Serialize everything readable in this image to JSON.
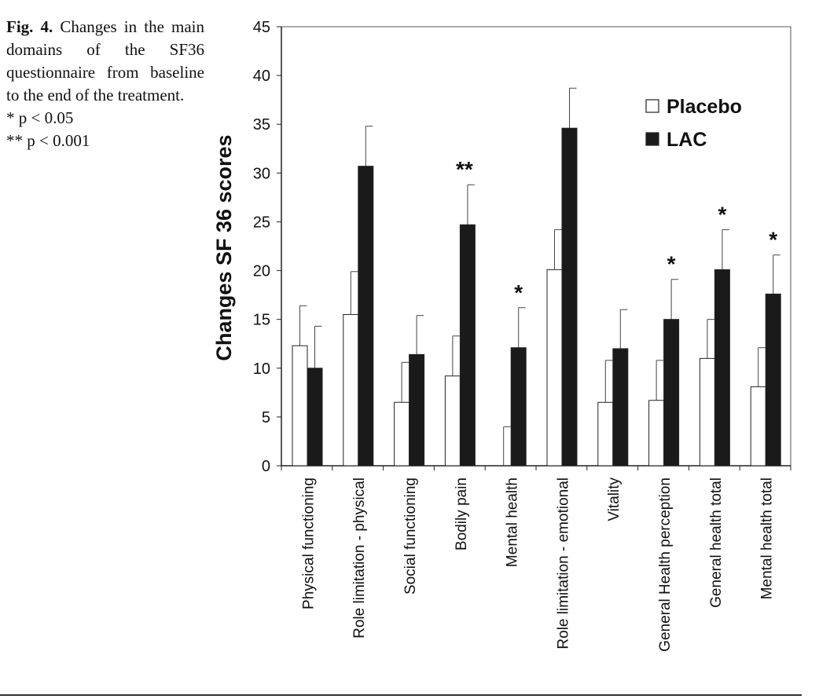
{
  "caption": {
    "fig_label": "Fig. 4.",
    "text": "Changes in the main domains of the SF36 questionnaire from baseline to the end of the treatment.",
    "sig_lines": [
      "* p < 0.05",
      "** p < 0.001"
    ]
  },
  "chart_data": {
    "type": "bar",
    "ylabel": "Changes SF 36 scores",
    "xlabel": "",
    "ylim": [
      0,
      45
    ],
    "yticks": [
      0,
      5,
      10,
      15,
      20,
      25,
      30,
      35,
      40,
      45
    ],
    "grid": false,
    "legend_position": "top-right",
    "categories": [
      "Physical functioning",
      "Role limitation - physical",
      "Social functioning",
      "Bodily pain",
      "Mental health",
      "Role limitation - emotional",
      "Vitality",
      "General Health perception",
      "General health total",
      "Mental health total"
    ],
    "series": [
      {
        "name": "Placebo",
        "color": "#ffffff",
        "values": [
          12.3,
          15.5,
          6.5,
          9.2,
          0,
          20.1,
          6.5,
          6.7,
          11.0,
          8.1
        ],
        "error": [
          4.1,
          4.4,
          4.1,
          4.1,
          4.0,
          4.1,
          4.3,
          4.1,
          4.0,
          4.0
        ]
      },
      {
        "name": "LAC",
        "color": "#1a1a1a",
        "values": [
          10.0,
          30.7,
          11.4,
          24.7,
          12.1,
          34.6,
          12.0,
          15.0,
          20.1,
          17.6
        ],
        "error": [
          4.3,
          4.1,
          4.0,
          4.1,
          4.1,
          4.1,
          4.0,
          4.1,
          4.1,
          4.0
        ]
      }
    ],
    "significance": [
      "",
      "",
      "",
      "**",
      "*",
      "",
      "",
      "*",
      "*",
      "*"
    ]
  }
}
